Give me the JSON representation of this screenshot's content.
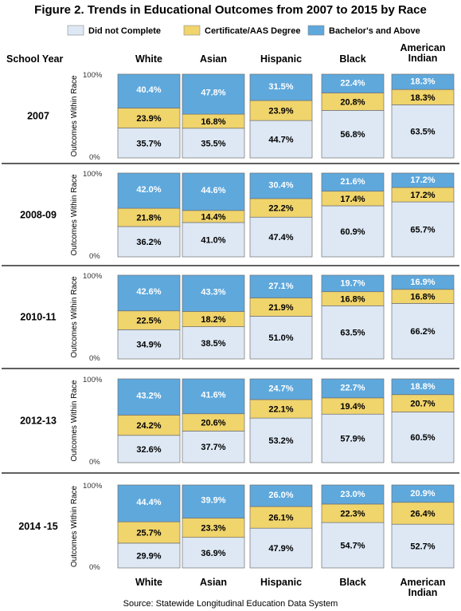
{
  "chart_data": {
    "type": "bar",
    "stacked": true,
    "normalized": true,
    "title": "Figure 2. Trends in Educational Outcomes from 2007 to 2015 by Race",
    "row_header": "School Year",
    "ylabel": "Outcomes Within Race",
    "ytick_top": "100%",
    "ytick_bottom": "0%",
    "ylim": [
      0,
      100
    ],
    "source": "Source: Statewide Longitudinal Education Data System",
    "categories": [
      "White",
      "Asian",
      "Hispanic",
      "Black",
      "American Indian"
    ],
    "category_lines": [
      [
        "White"
      ],
      [
        "Asian"
      ],
      [
        "Hispanic"
      ],
      [
        "Black"
      ],
      [
        "American",
        "Indian"
      ]
    ],
    "series": [
      {
        "name": "Did not Complete",
        "color": "#dde8f4"
      },
      {
        "name": "Certificate/AAS Degree",
        "color": "#f0d46c"
      },
      {
        "name": "Bachelor's and Above",
        "color": "#5ea8dc"
      }
    ],
    "panels": [
      {
        "year": "2007",
        "values": [
          [
            35.7,
            23.9,
            40.4
          ],
          [
            35.5,
            16.8,
            47.8
          ],
          [
            44.7,
            23.9,
            31.5
          ],
          [
            56.8,
            20.8,
            22.4
          ],
          [
            63.5,
            18.3,
            18.3
          ]
        ]
      },
      {
        "year": "2008-09",
        "values": [
          [
            36.2,
            21.8,
            42.0
          ],
          [
            41.0,
            14.4,
            44.6
          ],
          [
            47.4,
            22.2,
            30.4
          ],
          [
            60.9,
            17.4,
            21.6
          ],
          [
            65.7,
            17.2,
            17.2
          ]
        ]
      },
      {
        "year": "2010-11",
        "values": [
          [
            34.9,
            22.5,
            42.6
          ],
          [
            38.5,
            18.2,
            43.3
          ],
          [
            51.0,
            21.9,
            27.1
          ],
          [
            63.5,
            16.8,
            19.7
          ],
          [
            66.2,
            16.8,
            16.9
          ]
        ]
      },
      {
        "year": "2012-13",
        "values": [
          [
            32.6,
            24.2,
            43.2
          ],
          [
            37.7,
            20.6,
            41.6
          ],
          [
            53.2,
            22.1,
            24.7
          ],
          [
            57.9,
            19.4,
            22.7
          ],
          [
            60.5,
            20.7,
            18.8
          ]
        ]
      },
      {
        "year": "2014 -15",
        "values": [
          [
            29.9,
            25.7,
            44.4
          ],
          [
            36.9,
            23.3,
            39.9
          ],
          [
            47.9,
            26.1,
            26.0
          ],
          [
            54.7,
            22.3,
            23.0
          ],
          [
            52.7,
            26.4,
            20.9
          ]
        ]
      }
    ]
  }
}
